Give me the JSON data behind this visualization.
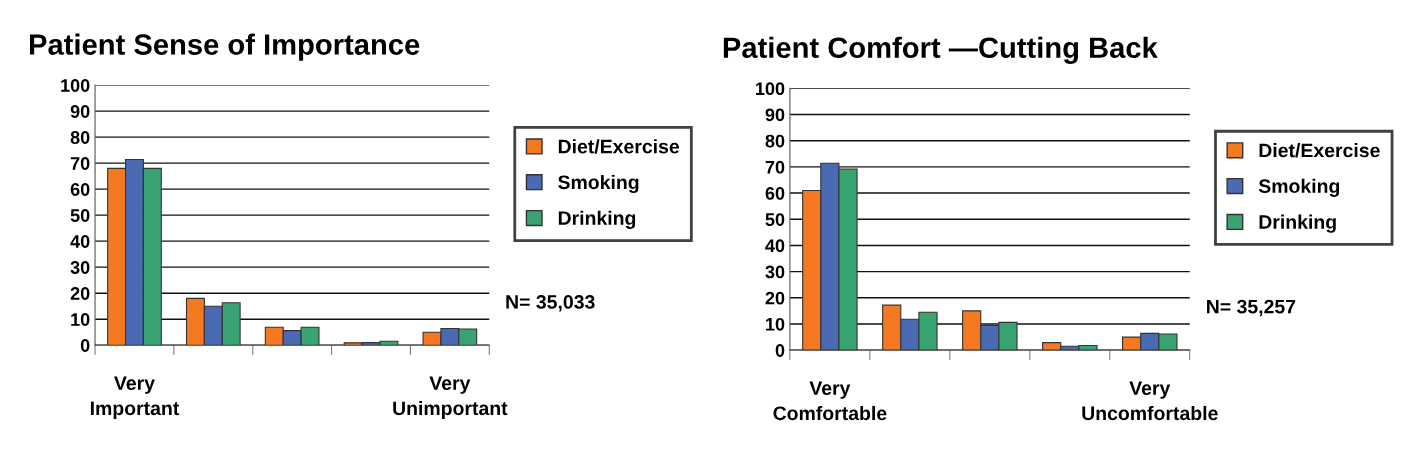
{
  "chart_data": [
    {
      "type": "bar",
      "title": "Patient Sense of Importance",
      "categories": [
        "Very\nImportant",
        null,
        null,
        null,
        "Very\nUnimportant"
      ],
      "series": [
        {
          "name": "Diet/Exercise",
          "color": "#f47920",
          "values": [
            68,
            18,
            6.9,
            0.9,
            5
          ]
        },
        {
          "name": "Smoking",
          "color": "#4a6ab3",
          "values": [
            71.4,
            15,
            5.6,
            1,
            6.4
          ]
        },
        {
          "name": "Drinking",
          "color": "#3aa372",
          "values": [
            68,
            16.3,
            6.9,
            1.5,
            6.2
          ]
        }
      ],
      "ylim": [
        0,
        100
      ],
      "yticks": [
        0,
        10,
        20,
        30,
        40,
        50,
        60,
        70,
        80,
        90,
        100
      ],
      "grid": "y",
      "legend": "right",
      "annotations": [
        "N= 35,033"
      ]
    },
    {
      "type": "bar",
      "title": "Patient Comfort —Cutting Back",
      "categories": [
        "Very\nComfortable",
        null,
        null,
        null,
        "Very\nUncomfortable"
      ],
      "series": [
        {
          "name": "Diet/Exercise",
          "color": "#f47920",
          "values": [
            61,
            17.2,
            15,
            2.9,
            5
          ]
        },
        {
          "name": "Smoking",
          "color": "#4a6ab3",
          "values": [
            71.4,
            11.8,
            9.4,
            1.5,
            6.4
          ]
        },
        {
          "name": "Drinking",
          "color": "#3aa372",
          "values": [
            69.2,
            14.5,
            10.6,
            1.8,
            6.2
          ]
        }
      ],
      "ylim": [
        0,
        100
      ],
      "yticks": [
        0,
        10,
        20,
        30,
        40,
        50,
        60,
        70,
        80,
        90,
        100
      ],
      "grid": "y",
      "legend": "right",
      "annotations": [
        "N= 35,257"
      ]
    }
  ]
}
